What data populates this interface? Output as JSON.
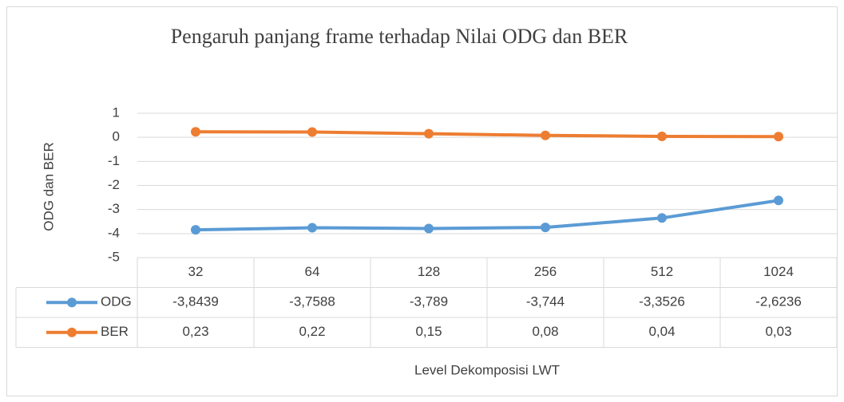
{
  "chart_data": {
    "type": "line",
    "title": "Pengaruh panjang frame terhadap Nilai ODG dan BER",
    "x_label": "Level Dekomposisi LWT",
    "y_label": "ODG dan BER",
    "categories": [
      "32",
      "64",
      "128",
      "256",
      "512",
      "1024"
    ],
    "series": [
      {
        "name": "ODG",
        "color": "#5b9bd5",
        "values": [
          -3.8439,
          -3.7588,
          -3.789,
          -3.744,
          -3.3526,
          -2.6236
        ],
        "value_labels": [
          "-3,8439",
          "-3,7588",
          "-3,789",
          "-3,744",
          "-3,3526",
          "-2,6236"
        ]
      },
      {
        "name": "BER",
        "color": "#ed7d31",
        "values": [
          0.23,
          0.22,
          0.15,
          0.08,
          0.04,
          0.03
        ],
        "value_labels": [
          "0,23",
          "0,22",
          "0,15",
          "0,08",
          "0,04",
          "0,03"
        ]
      }
    ],
    "ylim": [
      -5,
      1
    ],
    "yticks": [
      1,
      0,
      -1,
      -2,
      -3,
      -4,
      -5
    ],
    "grid": true,
    "data_table": true
  }
}
